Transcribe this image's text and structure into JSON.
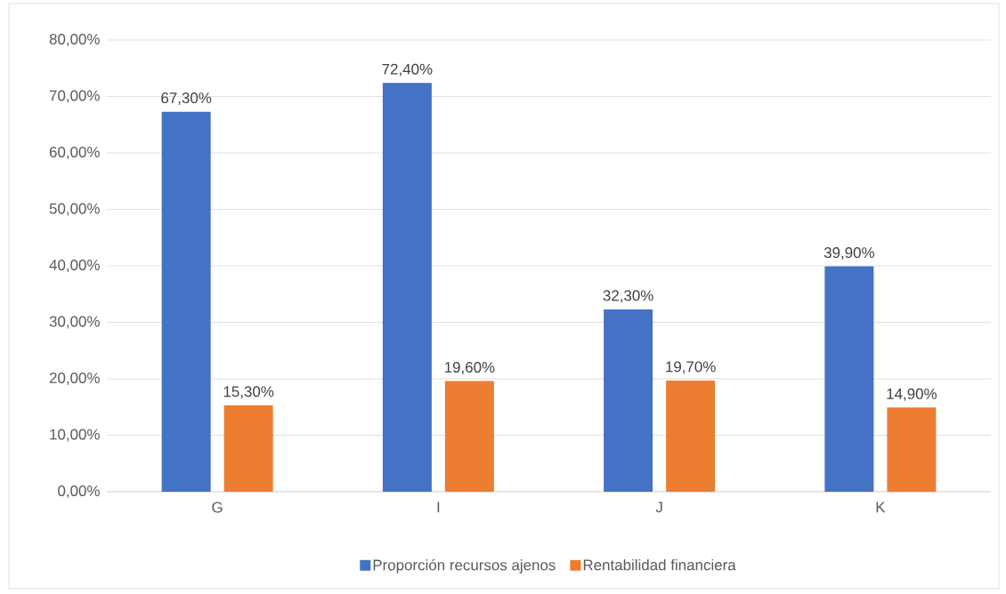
{
  "chart_data": {
    "type": "bar",
    "categories": [
      "G",
      "I",
      "J",
      "K"
    ],
    "series": [
      {
        "name": "Proporción recursos ajenos",
        "color": "#4472c4",
        "values": [
          67.3,
          72.4,
          32.3,
          39.9
        ],
        "value_labels": [
          "67,30%",
          "72,40%",
          "32,30%",
          "39,90%"
        ]
      },
      {
        "name": "Rentabilidad financiera",
        "color": "#ed7d31",
        "values": [
          15.3,
          19.6,
          19.7,
          14.9
        ],
        "value_labels": [
          "15,30%",
          "19,60%",
          "19,70%",
          "14,90%"
        ]
      }
    ],
    "ylim": [
      0,
      80
    ],
    "yticks": [
      {
        "value": 0,
        "label": "0,00%"
      },
      {
        "value": 10,
        "label": "10,00%"
      },
      {
        "value": 20,
        "label": "20,00%"
      },
      {
        "value": 30,
        "label": "30,00%"
      },
      {
        "value": 40,
        "label": "40,00%"
      },
      {
        "value": 50,
        "label": "50,00%"
      },
      {
        "value": 60,
        "label": "60,00%"
      },
      {
        "value": 70,
        "label": "70,00%"
      },
      {
        "value": 80,
        "label": "80,00%"
      }
    ],
    "grid": "y",
    "legend": "bottom"
  }
}
